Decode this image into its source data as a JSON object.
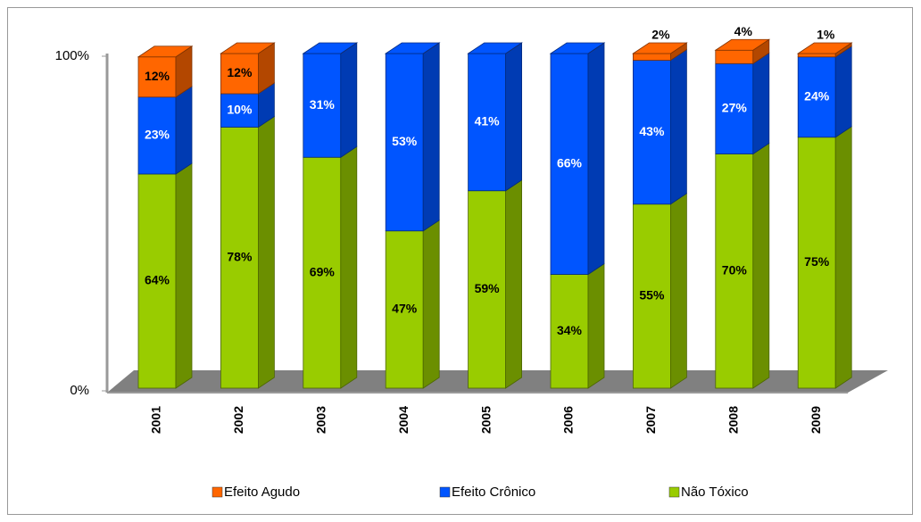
{
  "chart_data": {
    "type": "stacked_bar_3d",
    "categories": [
      "2001",
      "2002",
      "2003",
      "2004",
      "2005",
      "2006",
      "2007",
      "2008",
      "2009"
    ],
    "series": [
      {
        "name": "Não Tóxico",
        "color": "#99cc00",
        "values": [
          64,
          78,
          69,
          47,
          59,
          34,
          55,
          70,
          75
        ],
        "value_labels": [
          "64%",
          "78%",
          "69%",
          "47%",
          "59%",
          "34%",
          "55%",
          "70%",
          "75%"
        ]
      },
      {
        "name": "Efeito Crônico",
        "color": "#0055ff",
        "values": [
          23,
          10,
          31,
          53,
          41,
          66,
          43,
          27,
          24
        ],
        "value_labels": [
          "23%",
          "10%",
          "31%",
          "53%",
          "41%",
          "66%",
          "43%",
          "27%",
          "24%"
        ]
      },
      {
        "name": "Efeito Agudo",
        "color": "#ff6600",
        "values": [
          12,
          12,
          0,
          0,
          0,
          0,
          2,
          4,
          1
        ],
        "value_labels": [
          "12%",
          "12%",
          null,
          null,
          null,
          null,
          "2%",
          "4%",
          "1%"
        ]
      }
    ],
    "ylim": [
      0,
      100
    ],
    "yticks": [
      {
        "value": 0,
        "label": "0%"
      },
      {
        "value": 100,
        "label": "100%"
      }
    ],
    "legend": "bottom"
  }
}
